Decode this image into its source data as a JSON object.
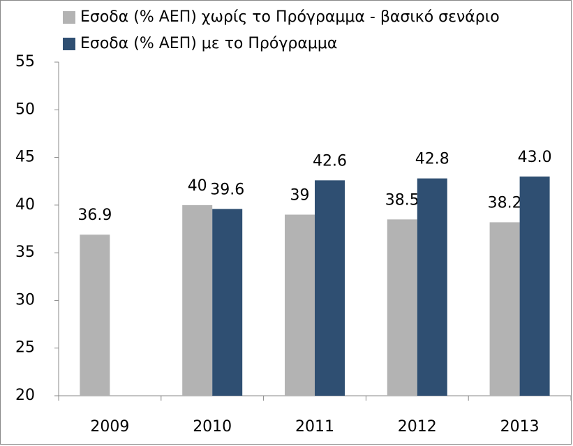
{
  "chart_data": {
    "type": "bar",
    "categories": [
      "2009",
      "2010",
      "2011",
      "2012",
      "2013"
    ],
    "series": [
      {
        "name": "Εσοδα (% ΑΕΠ) χωρίς το Πρόγραμμα - βασικό σενάριο",
        "color": "#b3b3b3",
        "values": [
          36.9,
          40,
          39,
          38.5,
          38.2
        ]
      },
      {
        "name": "Εσοδα (% ΑΕΠ) με το Πρόγραμμα",
        "color": "#2f4f72",
        "values": [
          null,
          39.6,
          42.6,
          42.8,
          43.0
        ],
        "value_labels": [
          null,
          "39.6",
          "42.6",
          "42.8",
          "43.0"
        ]
      }
    ],
    "ylim": [
      20,
      55
    ],
    "yticks": [
      20,
      25,
      30,
      35,
      40,
      45,
      50,
      55
    ],
    "grid": false,
    "legend": "top"
  }
}
